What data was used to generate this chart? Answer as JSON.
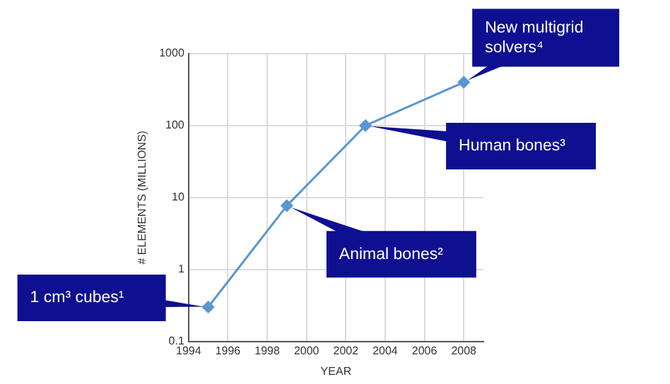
{
  "chart_data": {
    "type": "line",
    "xlabel": "YEAR",
    "ylabel": "# ELEMENTS (MILLIONS)",
    "x": [
      1995,
      1999,
      2003,
      2008
    ],
    "series": [
      {
        "color": "#5a96d2",
        "values": [
          0.3,
          7.7,
          100,
          400
        ]
      }
    ],
    "xlim": [
      1994,
      2009
    ],
    "xticks": [
      1994,
      1996,
      1998,
      2000,
      2002,
      2004,
      2006,
      2008
    ],
    "ylim": [
      0.1,
      1000
    ],
    "yticks": [
      0.1,
      1,
      10,
      100,
      1000
    ],
    "log": "y",
    "grid": true,
    "legend": false,
    "marker": "diamond",
    "line_style": "solid",
    "annotations": [
      {
        "text": "1 cm³ cubes¹",
        "x": 1995,
        "y": 0.3
      },
      {
        "text": "Animal bones²",
        "x": 1999,
        "y": 7.7
      },
      {
        "text": "Human bones³",
        "x": 2003,
        "y": 100
      },
      {
        "text": "New multigrid solvers⁴",
        "x": 2008,
        "y": 400
      }
    ]
  }
}
